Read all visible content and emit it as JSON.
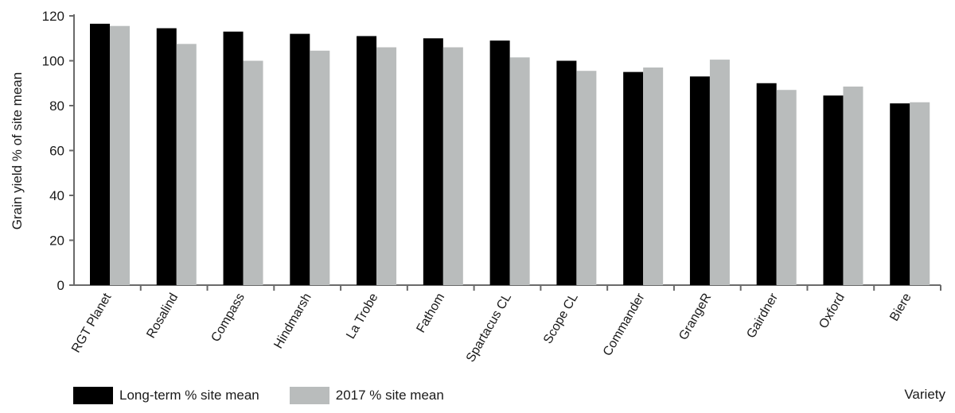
{
  "chart_data": {
    "type": "bar",
    "xlabel": "Variety",
    "ylabel": "Grain yield % of site mean",
    "ylim": [
      0,
      120
    ],
    "yticks": [
      0,
      20,
      40,
      60,
      80,
      100,
      120
    ],
    "grid": false,
    "legend_position": "bottom-left",
    "categories": [
      "RGT Planet",
      "Rosalind",
      "Compass",
      "Hindmarsh",
      "La Trobe",
      "Fathom",
      "Spartacus CL",
      "Scope CL",
      "Commander",
      "GrangeR",
      "Gairdner",
      "Oxford",
      "Biere"
    ],
    "series": [
      {
        "name": "Long-term % site mean",
        "color": "#000000",
        "values": [
          116.5,
          114.5,
          113,
          112,
          111,
          110,
          109,
          100,
          95,
          93,
          90,
          84.5,
          81
        ]
      },
      {
        "name": "2017 % site mean",
        "color": "#b9bcbc",
        "values": [
          115.5,
          107.5,
          100,
          104.5,
          106,
          106,
          101.5,
          95.5,
          97,
          100.5,
          87,
          88.5,
          81.5
        ]
      }
    ]
  }
}
